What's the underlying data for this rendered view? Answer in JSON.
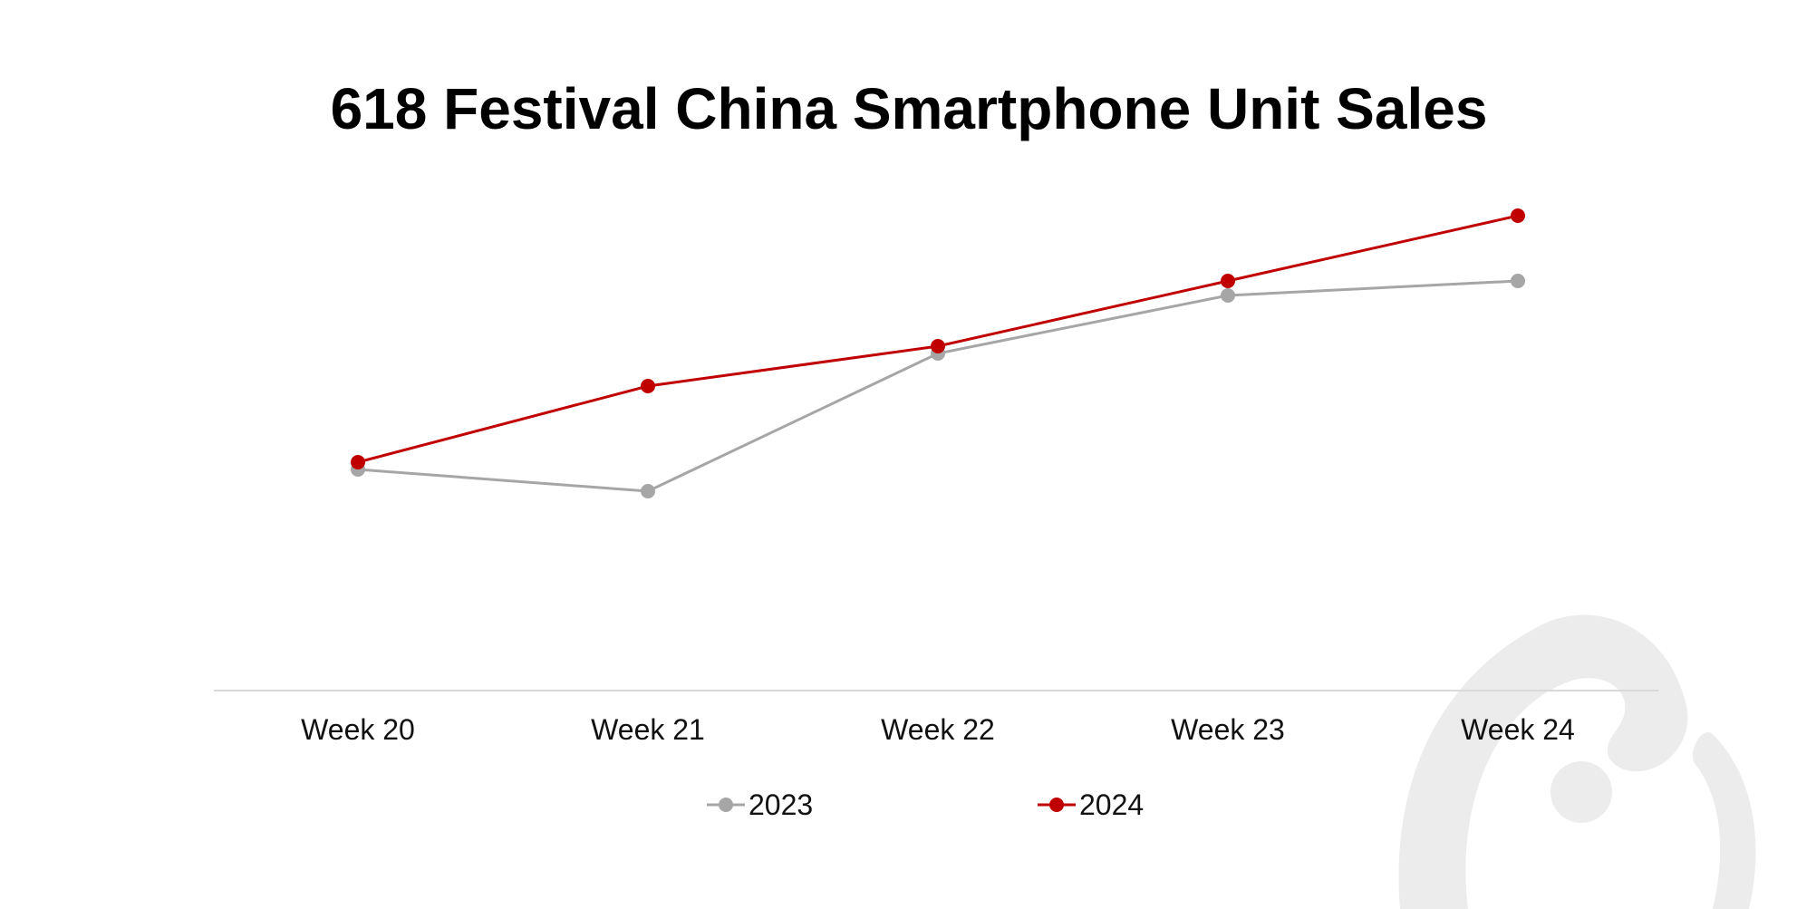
{
  "chart_data": {
    "type": "line",
    "title": "618 Festival China Smartphone Unit Sales",
    "xlabel": "",
    "ylabel": "",
    "categories": [
      "Week 20",
      "Week 21",
      "Week 22",
      "Week 23",
      "Week 24"
    ],
    "series": [
      {
        "name": "2023",
        "color": "#a6a6a6",
        "values": [
          32,
          26,
          64,
          80,
          84
        ]
      },
      {
        "name": "2024",
        "color": "#c00000",
        "values": [
          34,
          55,
          66,
          84,
          102
        ]
      }
    ],
    "ylim": [
      -29,
      103
    ],
    "y_axis_visible": false,
    "grid": false,
    "legend": "bottom",
    "watermark": "circular-logo-watermark"
  }
}
